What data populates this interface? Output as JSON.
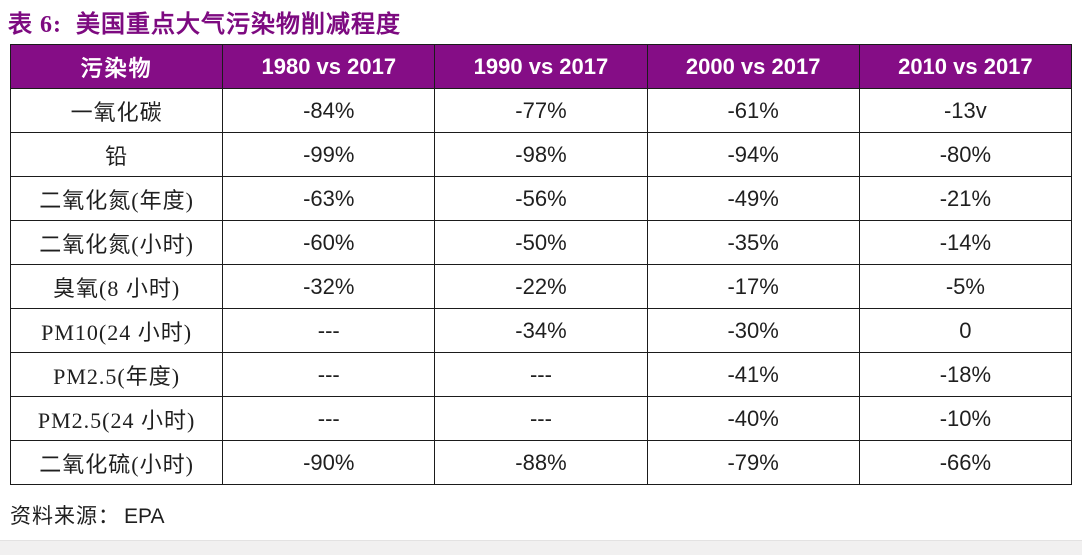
{
  "page": {
    "title": "表 6:  美国重点大气污染物削减程度",
    "source_label": "资料来源：",
    "source_value": "EPA"
  },
  "colors": {
    "accent_purple_header": "#850D86",
    "title_purple": "#7D0A80",
    "table_border": "#1b1b1b",
    "body_text": "#1f1f1f",
    "bottom_strip": "#f1f0f0"
  },
  "table": {
    "columns": [
      "污染物",
      "1980 vs 2017",
      "1990 vs 2017",
      "2000 vs 2017",
      "2010 vs 2017"
    ],
    "rows": [
      {
        "label": "一氧化碳",
        "values": [
          "-84%",
          "-77%",
          "-61%",
          "-13v"
        ]
      },
      {
        "label": "铅",
        "values": [
          "-99%",
          "-98%",
          "-94%",
          "-80%"
        ]
      },
      {
        "label": "二氧化氮(年度)",
        "values": [
          "-63%",
          "-56%",
          "-49%",
          "-21%"
        ]
      },
      {
        "label": "二氧化氮(小时)",
        "values": [
          "-60%",
          "-50%",
          "-35%",
          "-14%"
        ]
      },
      {
        "label": "臭氧(8 小时)",
        "values": [
          "-32%",
          "-22%",
          "-17%",
          "-5%"
        ]
      },
      {
        "label": "PM10(24 小时)",
        "values": [
          "---",
          "-34%",
          "-30%",
          "0"
        ]
      },
      {
        "label": "PM2.5(年度)",
        "values": [
          "---",
          "---",
          "-41%",
          "-18%"
        ]
      },
      {
        "label": "PM2.5(24 小时)",
        "values": [
          "---",
          "---",
          "-40%",
          "-10%"
        ]
      },
      {
        "label": "二氧化硫(小时)",
        "values": [
          "-90%",
          "-88%",
          "-79%",
          "-66%"
        ]
      }
    ]
  }
}
